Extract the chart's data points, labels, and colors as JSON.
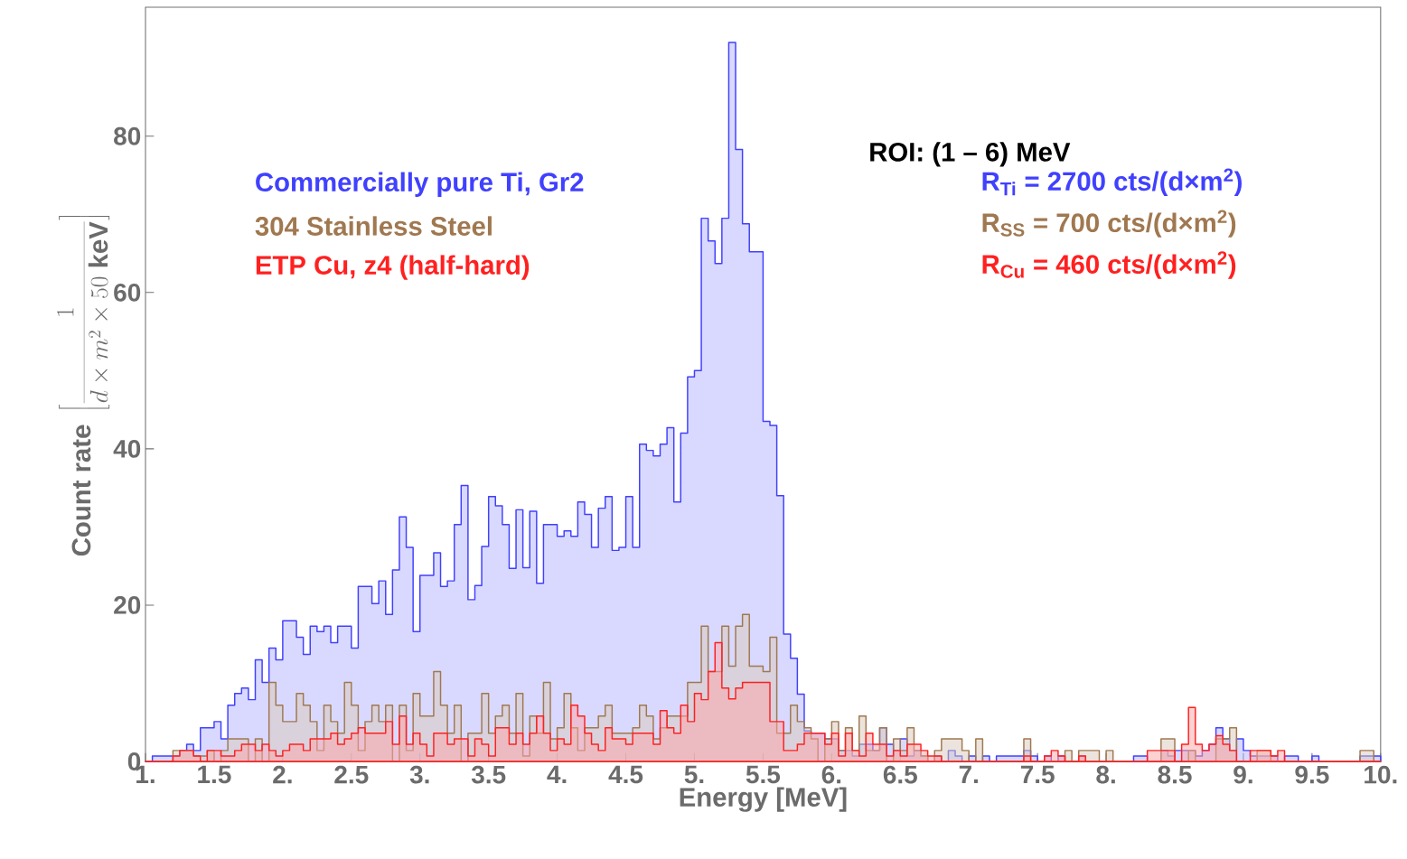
{
  "chart_data": {
    "type": "histogram",
    "xlabel": "Energy [MeV]",
    "ylabel": "\\mathbf{Count\\ rate}\\ \\left[\\frac{1}{d\\times m^{2}\\times 50\\ \\mathbf{keV}}\\right]",
    "xlim": [
      1,
      10
    ],
    "ylim": [
      0,
      96.5
    ],
    "xticks": [
      {
        "value": 1,
        "label": "1."
      },
      {
        "value": 1.5,
        "label": "1.5"
      },
      {
        "value": 2,
        "label": "2."
      },
      {
        "value": 2.5,
        "label": "2.5"
      },
      {
        "value": 3,
        "label": "3."
      },
      {
        "value": 3.5,
        "label": "3.5"
      },
      {
        "value": 4,
        "label": "4."
      },
      {
        "value": 4.5,
        "label": "4.5"
      },
      {
        "value": 5,
        "label": "5."
      },
      {
        "value": 5.5,
        "label": "5.5"
      },
      {
        "value": 6,
        "label": "6."
      },
      {
        "value": 6.5,
        "label": "6.5"
      },
      {
        "value": 7,
        "label": "7."
      },
      {
        "value": 7.5,
        "label": "7.5"
      },
      {
        "value": 8,
        "label": "8."
      },
      {
        "value": 8.5,
        "label": "8.5"
      },
      {
        "value": 9,
        "label": "9."
      },
      {
        "value": 9.5,
        "label": "9.5"
      },
      {
        "value": 10,
        "label": "10."
      }
    ],
    "yticks": [
      0,
      20,
      40,
      60,
      80
    ],
    "legend": "top left",
    "grid": false,
    "bins": [
      1,
      1.05,
      1.1,
      1.15,
      1.2,
      1.25,
      1.3,
      1.35,
      1.4,
      1.45,
      1.5,
      1.55,
      1.6,
      1.65,
      1.7,
      1.75,
      1.8,
      1.85,
      1.9,
      1.95,
      2,
      2.05,
      2.1,
      2.15,
      2.2,
      2.25,
      2.3,
      2.35,
      2.4,
      2.45,
      2.5,
      2.55,
      2.6,
      2.65,
      2.7,
      2.75,
      2.8,
      2.85,
      2.9,
      2.95,
      3,
      3.05,
      3.1,
      3.15,
      3.2,
      3.25,
      3.3,
      3.35,
      3.4,
      3.45,
      3.5,
      3.55,
      3.6,
      3.65,
      3.7,
      3.75,
      3.8,
      3.85,
      3.9,
      3.95,
      4,
      4.05,
      4.1,
      4.15,
      4.2,
      4.25,
      4.3,
      4.35,
      4.4,
      4.45,
      4.5,
      4.55,
      4.6,
      4.65,
      4.7,
      4.75,
      4.8,
      4.85,
      4.9,
      4.95,
      5,
      5.05,
      5.1,
      5.15,
      5.2,
      5.25,
      5.3,
      5.35,
      5.4,
      5.45,
      5.5,
      5.55,
      5.6,
      5.65,
      5.7,
      5.75,
      5.8,
      5.85,
      5.9,
      5.95,
      6,
      6.05,
      6.1,
      6.15,
      6.2,
      6.25,
      6.3,
      6.35,
      6.4,
      6.45,
      6.5,
      6.55,
      6.6,
      6.65,
      6.7,
      6.75,
      6.8,
      6.85,
      6.9,
      6.95,
      7,
      7.05,
      7.1,
      7.15,
      7.2,
      7.25,
      7.3,
      7.35,
      7.4,
      7.45,
      7.5,
      7.55,
      7.6,
      7.65,
      7.7,
      7.75,
      7.8,
      7.85,
      7.9,
      7.95,
      8,
      8.05,
      8.1,
      8.15,
      8.2,
      8.25,
      8.3,
      8.35,
      8.4,
      8.45,
      8.5,
      8.55,
      8.6,
      8.65,
      8.7,
      8.75,
      8.8,
      8.85,
      8.9,
      8.95,
      9,
      9.05,
      9.1,
      9.15,
      9.2,
      9.25,
      9.3,
      9.35,
      9.4,
      9.45,
      9.5,
      9.55,
      9.6,
      9.65,
      9.7,
      9.75,
      9.8,
      9.85,
      9.9,
      9.95,
      10
    ],
    "series": [
      {
        "name": "Commercially pure Ti, Gr2",
        "color": "#4040ff",
        "values": [
          0,
          0.7,
          0.7,
          0.7,
          0.7,
          1.4,
          2.2,
          1.4,
          4.3,
          4.3,
          5.1,
          2.9,
          7.2,
          8.7,
          9.4,
          7.9,
          13,
          10.1,
          14.5,
          13,
          18,
          18,
          15.9,
          13.7,
          17.3,
          16.6,
          17.3,
          15.2,
          17.3,
          17.3,
          14.5,
          22.4,
          22.4,
          20.2,
          23.1,
          18.8,
          24.5,
          31.3,
          27.4,
          16.6,
          23.8,
          23.8,
          26.7,
          22.4,
          23.1,
          30.3,
          35.3,
          20.7,
          22.5,
          27.5,
          33.9,
          32.7,
          30.3,
          24.7,
          32.2,
          24.8,
          32,
          22.8,
          30.3,
          30.3,
          28.8,
          29.5,
          28.8,
          33.2,
          31.6,
          27.4,
          32.4,
          33.9,
          27,
          27.4,
          33.9,
          27.4,
          40.6,
          39.8,
          39.1,
          40.6,
          42.7,
          33.2,
          42,
          49.2,
          50,
          69.5,
          66.6,
          63.7,
          69.5,
          92,
          78.3,
          68.8,
          65.2,
          65.2,
          43.5,
          43,
          34,
          16.3,
          13.2,
          8.6,
          3.9,
          3.6,
          3.6,
          2.9,
          2.9,
          1.4,
          1.4,
          0.7,
          2.2,
          2.2,
          1.4,
          4.3,
          2.2,
          1.4,
          2.9,
          0.7,
          1.4,
          0.7,
          0,
          0.7,
          0,
          1.4,
          0.7,
          0,
          0.7,
          0,
          0.7,
          0,
          0.7,
          0.7,
          0.7,
          0.7,
          1.4,
          0.7,
          0,
          0.7,
          0,
          0.7,
          0,
          0,
          0.7,
          0,
          0,
          0,
          0,
          0,
          0,
          0,
          0.7,
          0.7,
          0,
          0,
          1.4,
          0.7,
          1.4,
          1.4,
          1.4,
          0.7,
          1.4,
          2.2,
          4.3,
          2.9,
          1.4,
          2.9,
          1.4,
          0.7,
          0.7,
          0.7,
          0.7,
          0,
          0.7,
          0.7,
          0,
          0,
          0.7,
          0,
          0,
          0,
          0,
          0,
          0,
          0.7,
          0.7,
          0.7
        ]
      },
      {
        "name": "304 Stainless Steel",
        "color": "#a07850",
        "values": [
          0,
          0,
          0,
          0,
          1.4,
          1.4,
          1.4,
          0.7,
          0.7,
          1.4,
          0,
          1.4,
          2.9,
          2.9,
          2.9,
          0,
          2.9,
          0,
          10.1,
          7.2,
          5.1,
          5.1,
          8.7,
          7.2,
          5.1,
          1.4,
          7.2,
          5.1,
          3.6,
          10.1,
          7.2,
          1.4,
          5.1,
          7.2,
          5.1,
          7.2,
          0,
          7.2,
          1.4,
          8.7,
          5.8,
          5.8,
          11.5,
          7.2,
          3.6,
          7.2,
          0,
          3.6,
          3.6,
          8.7,
          3.6,
          5.8,
          7.2,
          3.6,
          8.7,
          0.7,
          5.8,
          3.6,
          10.1,
          2.9,
          4.3,
          8.7,
          4.3,
          1.4,
          4.3,
          4.3,
          5.8,
          7.2,
          3.6,
          3.6,
          3.6,
          4.3,
          7.2,
          5.8,
          2.9,
          4.3,
          5.8,
          5.8,
          5.8,
          10.1,
          10.1,
          17.3,
          11.5,
          11.5,
          17.3,
          12.2,
          17.3,
          18.8,
          12.2,
          12.2,
          11.5,
          15.9,
          3.6,
          3.6,
          7.2,
          5.1,
          4.3,
          2.9,
          0,
          2.9,
          5.1,
          1.4,
          4.3,
          1.4,
          5.8,
          1.4,
          1.4,
          4.3,
          0,
          2.9,
          1.4,
          4.3,
          1.4,
          0.7,
          0,
          1.4,
          2.9,
          2.9,
          2.9,
          1.4,
          0,
          2.9,
          0,
          0,
          0,
          0,
          0,
          0,
          2.9,
          0,
          0,
          0,
          0,
          0,
          1.4,
          0,
          1.4,
          1.4,
          1.4,
          0,
          1.4,
          0,
          0,
          0,
          0,
          0,
          0,
          0,
          2.9,
          2.9,
          0,
          0,
          1.4,
          0,
          0,
          0,
          2.9,
          2.9,
          4.3,
          0,
          0,
          0,
          1.4,
          1.4,
          0,
          0,
          0,
          0,
          0,
          0,
          0,
          0,
          0,
          0,
          0,
          0,
          0,
          1.4,
          1.4,
          0
        ]
      },
      {
        "name": "ETP Cu, z4 (half-hard)",
        "color": "#ff2020",
        "values": [
          0,
          0,
          0,
          0,
          0.7,
          1.4,
          1.4,
          0.7,
          0,
          1.4,
          1.4,
          0.7,
          0.7,
          1.4,
          2.2,
          2.2,
          1.4,
          2.2,
          1.4,
          0.7,
          1.4,
          2.2,
          2.2,
          1.4,
          2.9,
          2.9,
          2.9,
          3.6,
          2.2,
          2.9,
          3.6,
          4.3,
          3.6,
          3.6,
          3.6,
          5.1,
          2.2,
          5.8,
          2.2,
          3.6,
          2.2,
          0.7,
          3.6,
          3.6,
          2.2,
          2.9,
          2.9,
          0.7,
          2.9,
          2.2,
          0.7,
          4.3,
          4.3,
          2.2,
          3.6,
          2.2,
          3.6,
          5.8,
          3.6,
          1.4,
          2.9,
          2.2,
          7.2,
          5.8,
          3.6,
          2.2,
          1.4,
          4.3,
          2.9,
          2.9,
          2.2,
          3.6,
          3.6,
          3.6,
          2.2,
          6.5,
          4.3,
          3.6,
          7.2,
          5.1,
          8.7,
          7.9,
          11.5,
          15.2,
          9.4,
          8,
          9.4,
          10.1,
          10.1,
          10.1,
          10.1,
          5.1,
          5.1,
          1.4,
          1.4,
          2.2,
          3.6,
          3.6,
          3.6,
          2.2,
          3.6,
          0.7,
          3.6,
          1.4,
          0.7,
          3.6,
          2.2,
          2.2,
          0.7,
          1.4,
          0.7,
          2.2,
          2.2,
          1.4,
          0.7,
          0.7,
          0,
          0,
          0,
          0,
          0,
          0,
          0,
          0,
          0,
          0,
          0,
          0,
          0.7,
          0,
          0,
          0.7,
          1.4,
          0.7,
          0,
          0,
          0.7,
          0,
          0,
          0,
          0,
          0,
          0,
          0,
          0,
          0,
          1.4,
          1.4,
          1.4,
          1.4,
          0,
          2.2,
          6.9,
          2.2,
          1.4,
          2.2,
          3.3,
          2.2,
          1.4,
          0,
          0,
          1.4,
          1.4,
          1.4,
          0.7,
          1.4,
          0,
          0,
          0,
          0,
          0,
          0,
          0,
          0,
          0,
          0,
          0,
          0,
          0,
          0
        ]
      }
    ],
    "annotations": [
      "ROI: (1 – 6) MeV",
      "R$_{Ti}$ = 2700  cts/(d×m$^{2}$)",
      "R$_{SS}$ =  700  cts/(d×m$^{2}$)",
      "R$_{Cu}$ =  460  cts/(d×m$^{2}$)"
    ]
  }
}
